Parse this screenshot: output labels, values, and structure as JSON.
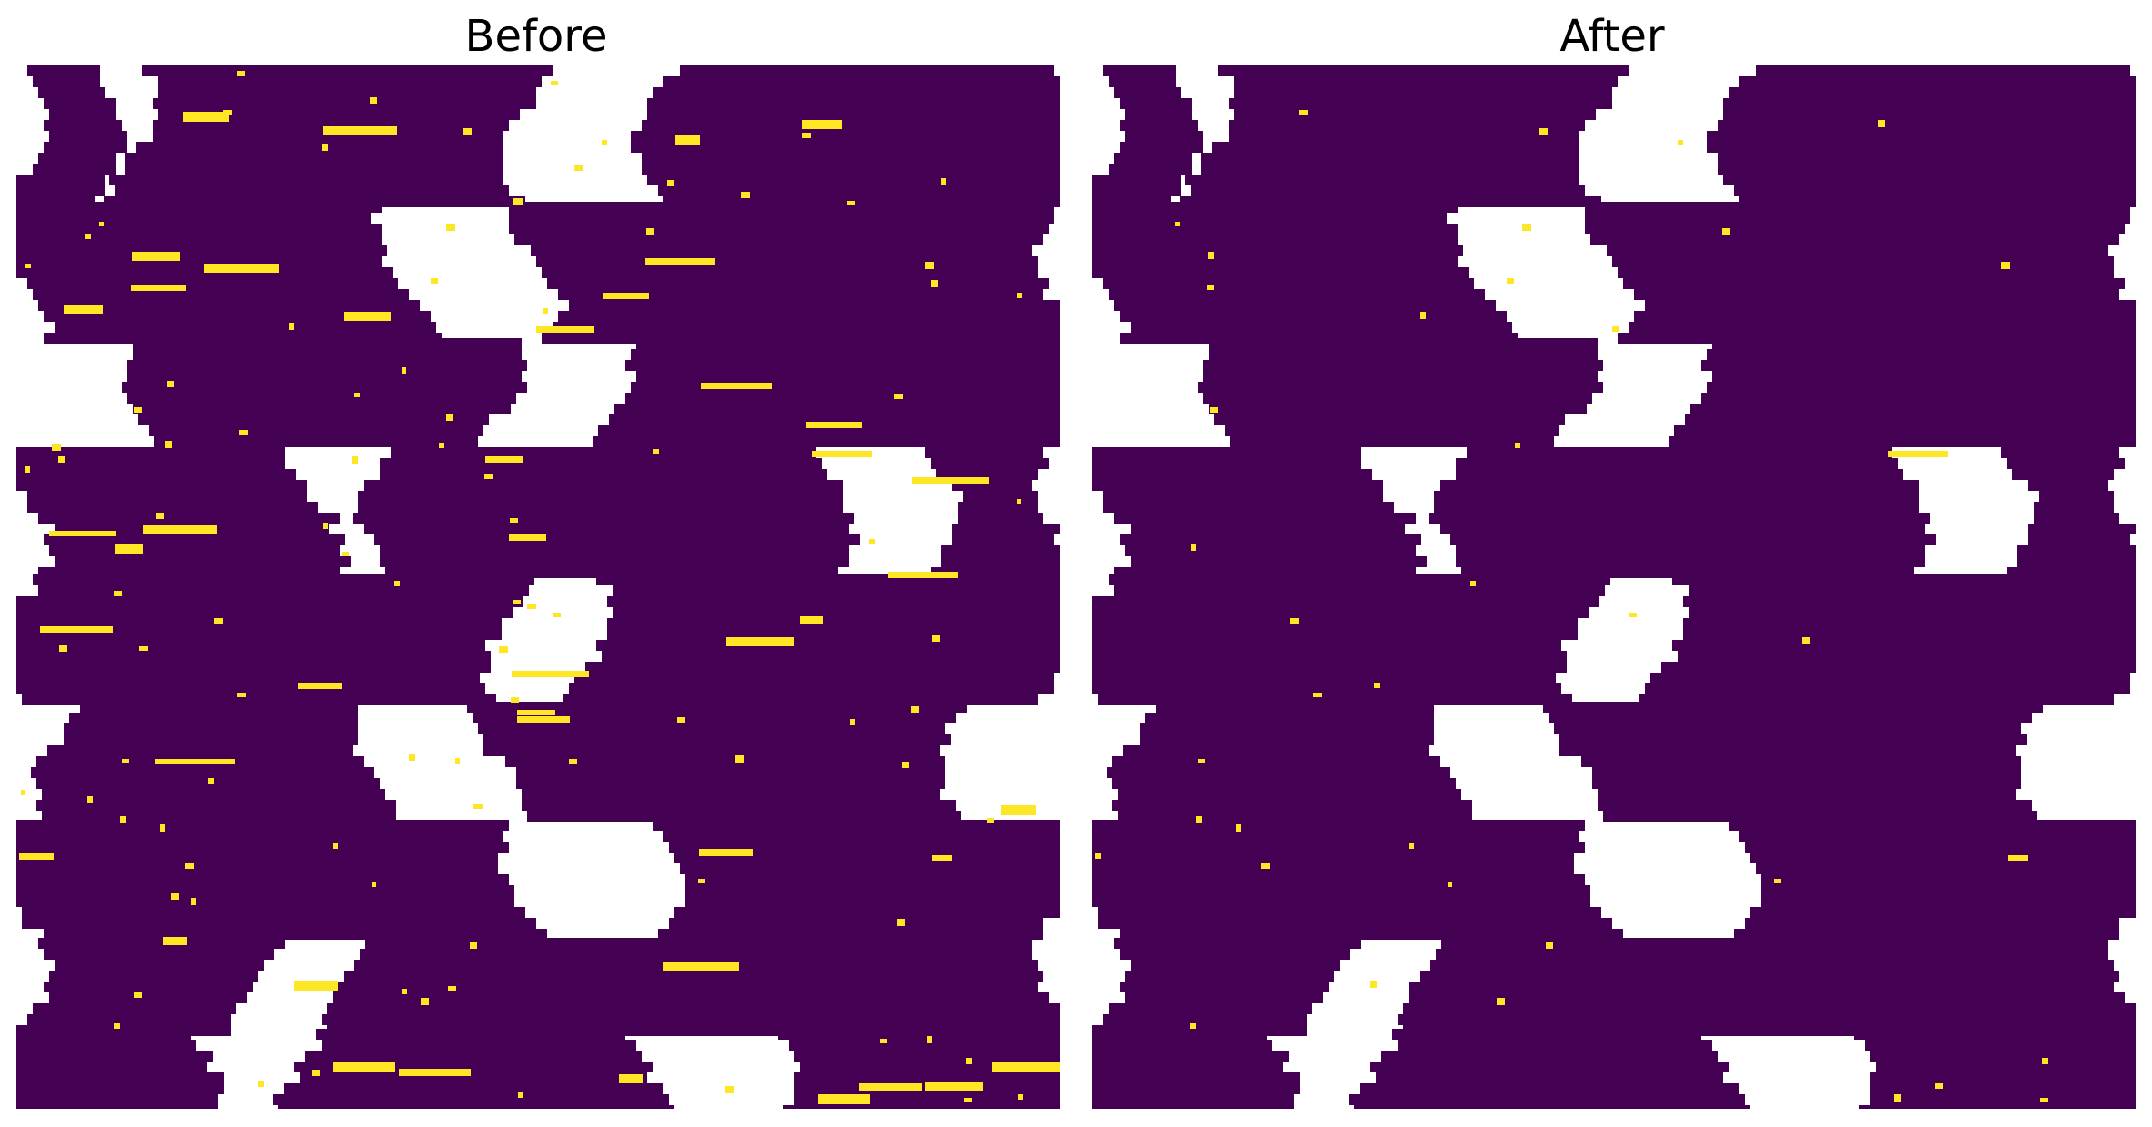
{
  "panels": [
    {
      "title": "Before",
      "shows_speckle": true
    },
    {
      "title": "After",
      "shows_speckle": false
    }
  ],
  "colors": {
    "background": "#ffffff",
    "mask_region": "#440154",
    "speckle": "#fde725"
  }
}
